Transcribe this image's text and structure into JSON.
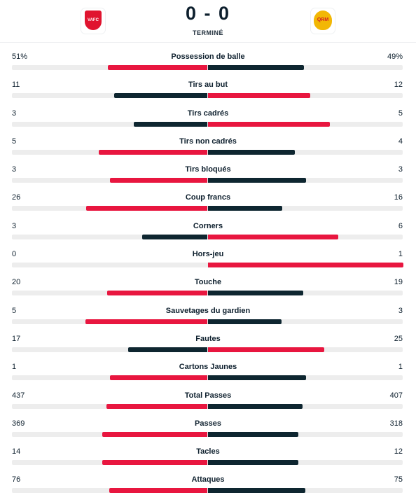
{
  "match": {
    "home_crest_text": "VAFC",
    "away_crest_text": "QRM",
    "score": "0 - 0",
    "status": "TERMINÉ"
  },
  "colors": {
    "leader": "#e8163f",
    "trailer": "#0e2630",
    "track": "#ededed"
  },
  "stats": [
    {
      "label": "Possession de balle",
      "home": "51%",
      "away": "49%",
      "hn": 51,
      "an": 49
    },
    {
      "label": "Tirs au but",
      "home": "11",
      "away": "12",
      "hn": 11,
      "an": 12
    },
    {
      "label": "Tirs cadrés",
      "home": "3",
      "away": "5",
      "hn": 3,
      "an": 5
    },
    {
      "label": "Tirs non cadrés",
      "home": "5",
      "away": "4",
      "hn": 5,
      "an": 4
    },
    {
      "label": "Tirs bloqués",
      "home": "3",
      "away": "3",
      "hn": 3,
      "an": 3
    },
    {
      "label": "Coup francs",
      "home": "26",
      "away": "16",
      "hn": 26,
      "an": 16
    },
    {
      "label": "Corners",
      "home": "3",
      "away": "6",
      "hn": 3,
      "an": 6
    },
    {
      "label": "Hors-jeu",
      "home": "0",
      "away": "1",
      "hn": 0,
      "an": 1
    },
    {
      "label": "Touche",
      "home": "20",
      "away": "19",
      "hn": 20,
      "an": 19
    },
    {
      "label": "Sauvetages du gardien",
      "home": "5",
      "away": "3",
      "hn": 5,
      "an": 3
    },
    {
      "label": "Fautes",
      "home": "17",
      "away": "25",
      "hn": 17,
      "an": 25
    },
    {
      "label": "Cartons Jaunes",
      "home": "1",
      "away": "1",
      "hn": 1,
      "an": 1
    },
    {
      "label": "Total Passes",
      "home": "437",
      "away": "407",
      "hn": 437,
      "an": 407
    },
    {
      "label": "Passes",
      "home": "369",
      "away": "318",
      "hn": 369,
      "an": 318
    },
    {
      "label": "Tacles",
      "home": "14",
      "away": "12",
      "hn": 14,
      "an": 12
    },
    {
      "label": "Attaques",
      "home": "76",
      "away": "75",
      "hn": 76,
      "an": 75
    }
  ]
}
